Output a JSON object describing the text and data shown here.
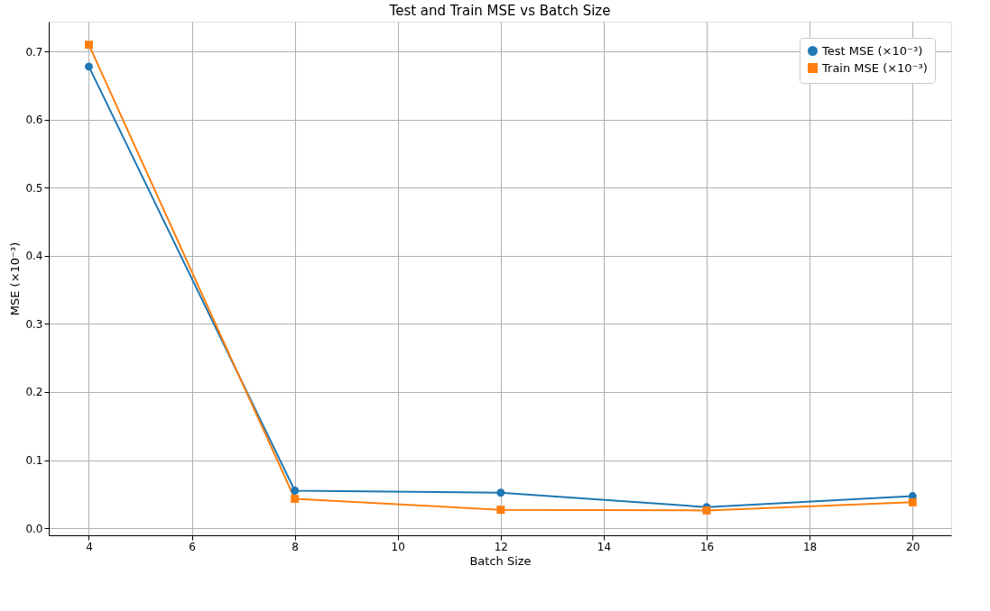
{
  "chart_data": {
    "type": "line",
    "title": "Test and Train MSE vs Batch Size",
    "xlabel": "Batch Size",
    "ylabel": "MSE (×10⁻³)",
    "x": [
      4,
      8,
      12,
      16,
      20
    ],
    "series": [
      {
        "name": "Test MSE (×10⁻³)",
        "color": "#1f77b4",
        "marker": "circle",
        "values": [
          0.678,
          0.055,
          0.052,
          0.031,
          0.047
        ]
      },
      {
        "name": "Train MSE (×10⁻³)",
        "color": "#ff7f0e",
        "marker": "square",
        "values": [
          0.71,
          0.043,
          0.027,
          0.026,
          0.038
        ]
      }
    ],
    "xlim": [
      3.22,
      20.75
    ],
    "ylim": [
      -0.0105,
      0.744
    ],
    "xticks": [
      4,
      6,
      8,
      10,
      12,
      14,
      16,
      18,
      20
    ],
    "yticks": [
      {
        "value": 0,
        "label": "0.0"
      },
      0.1,
      0.2,
      0.3,
      0.4,
      0.5,
      0.6,
      0.7
    ],
    "grid": true,
    "legend": "top right",
    "line_style": "solid"
  }
}
